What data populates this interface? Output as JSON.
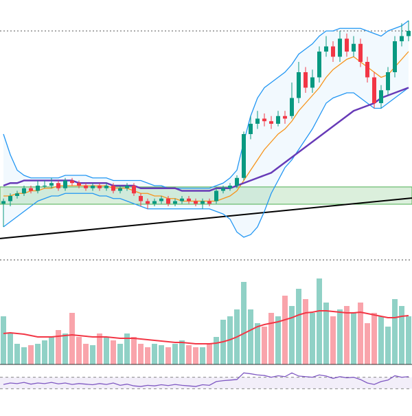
{
  "chart_data": {
    "type": "candlestick",
    "up_color": "#089981",
    "down_color": "#f23645",
    "ylim": [
      0,
      100
    ],
    "open": [
      21,
      22,
      24,
      25,
      27,
      26,
      28,
      28,
      29,
      27,
      30,
      29,
      28,
      27,
      28,
      27,
      28,
      26,
      27,
      28,
      24,
      22,
      21,
      22,
      23,
      21,
      22,
      23,
      22,
      21,
      22,
      22,
      26,
      27,
      28,
      31,
      48,
      52,
      54,
      53,
      52,
      55,
      55,
      62,
      72,
      66,
      70,
      80,
      82,
      78,
      85,
      80,
      83,
      76,
      70,
      60,
      65,
      72,
      84,
      86
    ],
    "high": [
      23,
      25,
      26,
      28,
      28,
      30,
      30,
      31,
      30,
      31,
      31,
      30,
      29,
      29,
      29,
      29,
      29,
      28,
      29,
      29,
      25,
      23,
      23,
      24,
      24,
      23,
      24,
      24,
      23,
      23,
      23,
      27,
      28,
      29,
      32,
      49,
      55,
      57,
      56,
      55,
      57,
      57,
      68,
      76,
      74,
      73,
      82,
      86,
      84,
      88,
      87,
      86,
      85,
      78,
      72,
      67,
      74,
      86,
      91,
      92
    ],
    "low": [
      12,
      20,
      23,
      24,
      25,
      25,
      27,
      27,
      26,
      26,
      28,
      27,
      26,
      26,
      26,
      26,
      25,
      25,
      26,
      24,
      20,
      19,
      20,
      21,
      20,
      20,
      21,
      21,
      20,
      19,
      20,
      21,
      25,
      26,
      27,
      30,
      46,
      50,
      51,
      50,
      51,
      52,
      54,
      60,
      64,
      64,
      68,
      78,
      76,
      76,
      78,
      78,
      74,
      68,
      58,
      58,
      63,
      70,
      82,
      84
    ],
    "close": [
      22,
      24,
      25,
      27,
      26,
      28,
      28,
      29,
      27,
      30,
      29,
      28,
      27,
      28,
      27,
      28,
      26,
      27,
      28,
      25,
      22,
      21,
      22,
      23,
      21,
      22,
      23,
      22,
      21,
      22,
      21,
      26,
      27,
      28,
      31,
      48,
      52,
      54,
      53,
      52,
      55,
      54,
      62,
      72,
      66,
      70,
      80,
      82,
      78,
      85,
      80,
      83,
      76,
      70,
      60,
      65,
      72,
      84,
      86,
      88
    ],
    "overlays": [
      {
        "color": "#2196f3",
        "values": [
          48,
          40,
          34,
          32,
          31,
          31,
          31,
          31,
          31,
          32,
          32,
          32,
          32,
          31,
          31,
          31,
          30,
          30,
          30,
          30,
          30,
          29,
          28,
          28,
          27,
          27,
          27,
          27,
          27,
          27,
          27,
          28,
          29,
          31,
          34,
          45,
          55,
          62,
          66,
          68,
          70,
          72,
          75,
          79,
          81,
          83,
          86,
          88,
          88,
          89,
          89,
          89,
          89,
          88,
          87,
          86,
          88,
          89,
          90,
          92
        ]
      },
      {
        "color": "#2196f3",
        "values": [
          12,
          14,
          16,
          18,
          20,
          22,
          23,
          24,
          24,
          25,
          25,
          25,
          25,
          25,
          24,
          24,
          23,
          23,
          22,
          21,
          20,
          19,
          19,
          19,
          19,
          19,
          19,
          19,
          19,
          19,
          19,
          18,
          17,
          15,
          10,
          8,
          9,
          12,
          18,
          25,
          30,
          35,
          38,
          42,
          46,
          50,
          55,
          60,
          62,
          63,
          64,
          64,
          62,
          60,
          58,
          58,
          60,
          62,
          64,
          66
        ]
      },
      {
        "color": "#f7931a",
        "values": [
          24,
          24,
          25,
          25,
          26,
          26,
          27,
          27,
          28,
          28,
          28,
          28,
          28,
          28,
          28,
          28,
          27,
          27,
          27,
          26,
          25,
          25,
          24,
          24,
          23,
          23,
          22,
          22,
          22,
          22,
          22,
          22,
          23,
          24,
          26,
          30,
          34,
          38,
          42,
          45,
          48,
          50,
          53,
          57,
          60,
          63,
          66,
          70,
          73,
          75,
          77,
          78,
          76,
          74,
          72,
          70,
          71,
          74,
          77,
          80
        ]
      },
      {
        "color": "#673ab7",
        "values": [
          28,
          29,
          29,
          30,
          30,
          30,
          30,
          30,
          30,
          30,
          30,
          29,
          29,
          29,
          29,
          29,
          28,
          28,
          28,
          28,
          27,
          27,
          27,
          27,
          27,
          27,
          26,
          26,
          26,
          26,
          26,
          27,
          27,
          27,
          28,
          29,
          30,
          31,
          32,
          33,
          35,
          37,
          39,
          41,
          43,
          45,
          47,
          49,
          51,
          53,
          55,
          57,
          58,
          59,
          60,
          62,
          63,
          64,
          65,
          66
        ]
      }
    ],
    "levels": [
      {
        "value": 88,
        "color": "#555555"
      }
    ],
    "zone": {
      "from": 20.8,
      "to": 27.5,
      "color": "#4caf50"
    },
    "trend": {
      "from": 7.5,
      "to": 23.2,
      "color": "#000000"
    },
    "volume": {
      "ylim": [
        0,
        140
      ],
      "values": [
        70,
        45,
        30,
        25,
        28,
        30,
        35,
        40,
        50,
        45,
        75,
        40,
        30,
        28,
        45,
        40,
        35,
        30,
        45,
        40,
        30,
        25,
        30,
        28,
        25,
        30,
        35,
        28,
        25,
        25,
        30,
        40,
        65,
        70,
        80,
        120,
        80,
        60,
        55,
        75,
        70,
        100,
        85,
        110,
        95,
        75,
        125,
        90,
        70,
        80,
        85,
        75,
        90,
        60,
        75,
        70,
        55,
        95,
        85,
        70
      ],
      "ma": [
        45,
        46,
        45,
        44,
        42,
        40,
        40,
        40,
        41,
        42,
        43,
        42,
        41,
        40,
        40,
        40,
        39,
        38,
        38,
        38,
        37,
        36,
        35,
        34,
        33,
        32,
        32,
        31,
        30,
        30,
        30,
        31,
        33,
        36,
        40,
        45,
        50,
        55,
        58,
        60,
        62,
        65,
        68,
        72,
        75,
        76,
        78,
        78,
        77,
        76,
        75,
        75,
        76,
        74,
        72,
        70,
        68,
        68,
        70,
        71
      ],
      "ma_color": "#f23645"
    },
    "rsi": {
      "ylim": [
        0,
        100
      ],
      "bands": [
        30,
        70
      ],
      "color": "#7e57c2",
      "values": [
        45,
        50,
        48,
        52,
        46,
        50,
        48,
        52,
        47,
        50,
        45,
        48,
        46,
        44,
        48,
        45,
        50,
        42,
        46,
        40,
        38,
        42,
        40,
        44,
        41,
        45,
        42,
        40,
        38,
        44,
        42,
        55,
        58,
        60,
        62,
        85,
        82,
        78,
        76,
        70,
        75,
        72,
        85,
        74,
        72,
        70,
        78,
        74,
        66,
        72,
        68,
        70,
        62,
        50,
        45,
        55,
        60,
        75,
        70,
        72
      ]
    }
  }
}
